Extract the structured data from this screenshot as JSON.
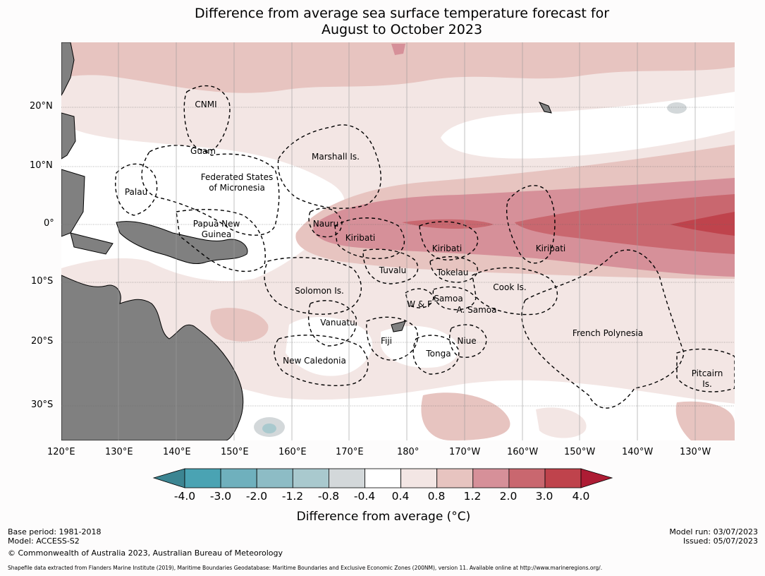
{
  "title_line1": "Difference from average sea surface temperature forecast for",
  "title_line2": "August to October 2023",
  "lon_labels": [
    "120°E",
    "130°E",
    "140°E",
    "150°E",
    "160°E",
    "170°E",
    "180°",
    "170°W",
    "160°W",
    "150°W",
    "140°W",
    "130°W"
  ],
  "lat_labels": [
    "20°N",
    "10°N",
    "0°",
    "10°S",
    "20°S",
    "30°S"
  ],
  "places": {
    "cnmi": "CNMI",
    "guam": "Guam",
    "marshall": "Marshall Is.",
    "fsm1": "Federated States",
    "fsm2": "of Micronesia",
    "palau": "Palau",
    "png1": "Papua New",
    "png2": "Guinea",
    "nauru": "Nauru",
    "kiribati1": "Kiribati",
    "kiribati2": "Kiribati",
    "kiribati3": "Kiribati",
    "tuvalu": "Tuvalu",
    "tokelau": "Tokelau",
    "cook": "Cook Is.",
    "solomon": "Solomon Is.",
    "samoa": "Samoa",
    "wf": "W & F",
    "asamoa": "A. Samoa",
    "vanuatu": "Vanuatu",
    "fiji": "Fiji",
    "niue": "Niue",
    "tonga": "Tonga",
    "newcal": "New Caledonia",
    "frpoly": "French Polynesia",
    "pitcairn1": "Pitcairn",
    "pitcairn2": "Is."
  },
  "colorbar": {
    "ticks": [
      "-4.0",
      "-3.0",
      "-2.0",
      "-1.2",
      "-0.8",
      "-0.4",
      "0.4",
      "0.8",
      "1.2",
      "2.0",
      "3.0",
      "4.0"
    ],
    "colors": [
      "#4aa3b3",
      "#6fb0bd",
      "#8dbcc5",
      "#a9c9ce",
      "#d3d8da",
      "#ffffff",
      "#f3e6e4",
      "#e7c4c0",
      "#d69099",
      "#c9676f",
      "#bf434c"
    ],
    "low_color": "#3c8592",
    "high_color": "#ad1c34",
    "title": "Difference from average (°C)"
  },
  "meta": {
    "base_period": "Base period: 1981-2018",
    "model": "Model: ACCESS-S2",
    "copyright": "© Commonwealth of Australia 2023, Australian Bureau of Meteorology",
    "model_run": "Model run: 03/07/2023",
    "issued": "Issued: 05/07/2023",
    "shapefile": "Shapefile data extracted from Flanders Marine Institute (2019), Maritime Boundaries Geodatabase: Maritime Boundaries and Exclusive Economic Zones (200NM), version 11. Available online at http://www.marineregions.org/."
  }
}
